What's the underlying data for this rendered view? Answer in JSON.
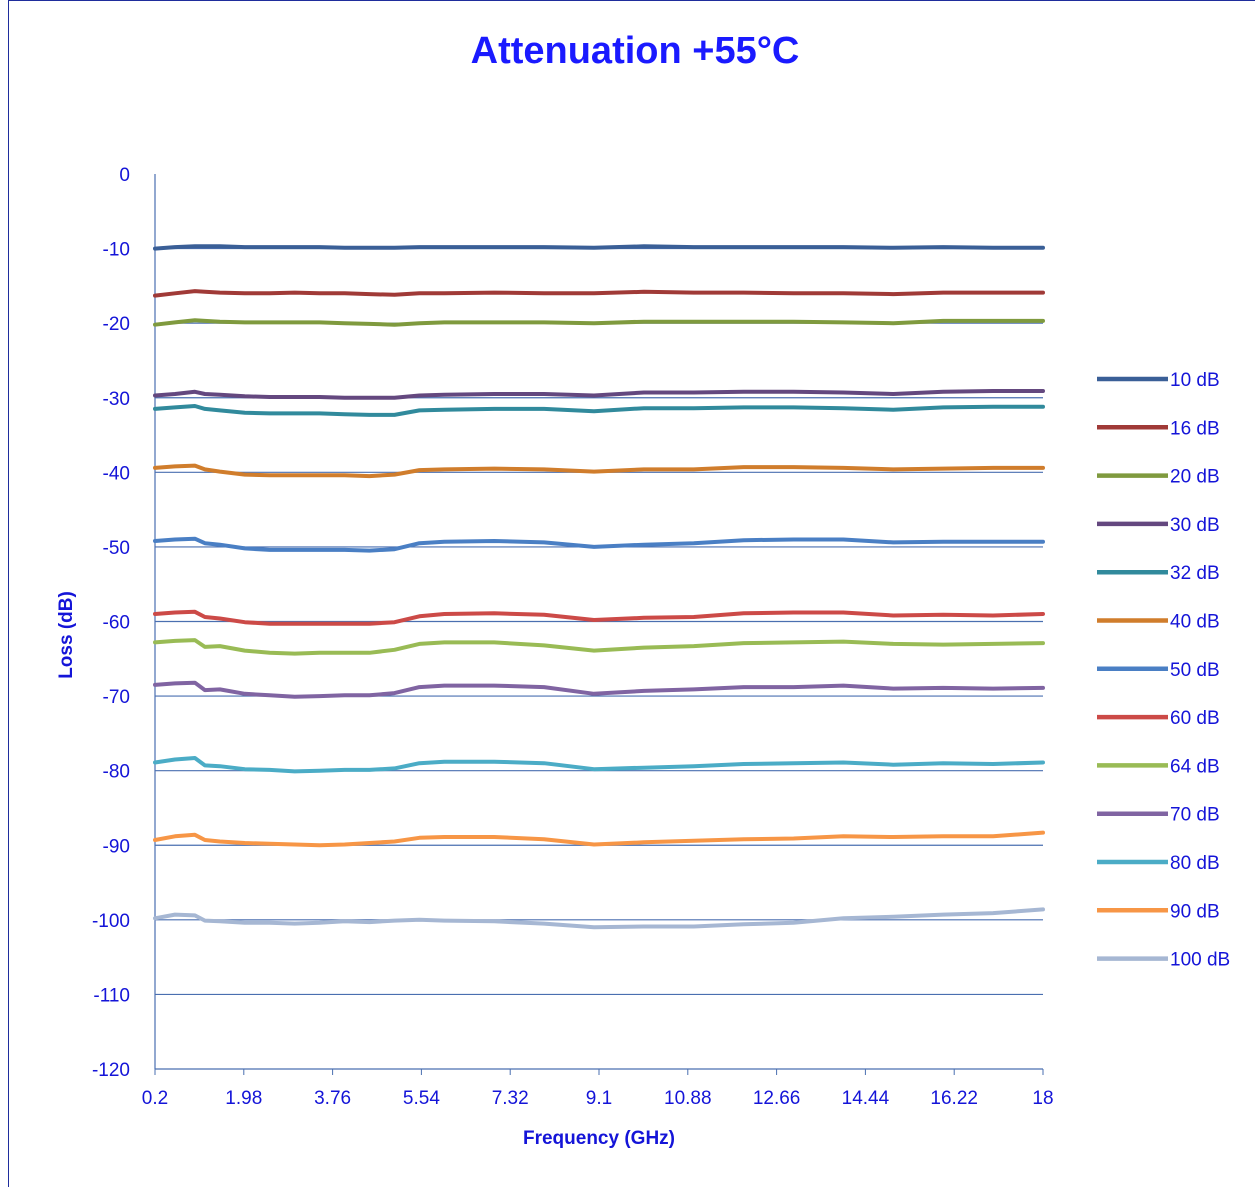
{
  "chart_data": {
    "type": "line",
    "title": "Attenuation +55°C",
    "xlabel": "Frequency (GHz)",
    "ylabel": "Loss (dB)",
    "xlim": [
      0.2,
      18
    ],
    "ylim": [
      -120,
      0
    ],
    "x_ticks": [
      "0.2",
      "1.98",
      "3.76",
      "5.54",
      "7.32",
      "9.1",
      "10.88",
      "12.66",
      "14.44",
      "16.22",
      "18"
    ],
    "y_ticks": [
      "0",
      "-10",
      "-20",
      "-30",
      "-40",
      "-50",
      "-60",
      "-70",
      "-80",
      "-90",
      "-100",
      "-110",
      "-120"
    ],
    "grid": "horizontal",
    "legend_position": "right",
    "x": [
      0.2,
      0.6,
      1.0,
      1.2,
      1.5,
      2.0,
      2.5,
      3.0,
      3.5,
      4.0,
      4.5,
      5.0,
      5.5,
      6.0,
      7.0,
      8.0,
      9.0,
      10.0,
      11.0,
      12.0,
      13.0,
      14.0,
      15.0,
      16.0,
      17.0,
      18.0
    ],
    "series": [
      {
        "name": "10 dB",
        "color": "#3a5f97",
        "values": [
          -10.0,
          -9.8,
          -9.7,
          -9.7,
          -9.7,
          -9.8,
          -9.8,
          -9.8,
          -9.8,
          -9.9,
          -9.9,
          -9.9,
          -9.8,
          -9.8,
          -9.8,
          -9.8,
          -9.9,
          -9.7,
          -9.8,
          -9.8,
          -9.8,
          -9.8,
          -9.9,
          -9.8,
          -9.9,
          -9.9
        ]
      },
      {
        "name": "16 dB",
        "color": "#a03a37",
        "values": [
          -16.3,
          -16.0,
          -15.7,
          -15.8,
          -15.9,
          -16.0,
          -16.0,
          -15.9,
          -16.0,
          -16.0,
          -16.1,
          -16.2,
          -16.0,
          -16.0,
          -15.9,
          -16.0,
          -16.0,
          -15.8,
          -15.9,
          -15.9,
          -16.0,
          -16.0,
          -16.1,
          -15.9,
          -15.9,
          -15.9
        ]
      },
      {
        "name": "20 dB",
        "color": "#7f9a3e",
        "values": [
          -20.2,
          -19.9,
          -19.6,
          -19.7,
          -19.8,
          -19.9,
          -19.9,
          -19.9,
          -19.9,
          -20.0,
          -20.1,
          -20.2,
          -20.0,
          -19.9,
          -19.9,
          -19.9,
          -20.0,
          -19.8,
          -19.8,
          -19.8,
          -19.8,
          -19.9,
          -20.0,
          -19.7,
          -19.7,
          -19.7
        ]
      },
      {
        "name": "30 dB",
        "color": "#64487f",
        "values": [
          -29.7,
          -29.5,
          -29.2,
          -29.5,
          -29.6,
          -29.8,
          -29.9,
          -29.9,
          -29.9,
          -30.0,
          -30.0,
          -30.0,
          -29.7,
          -29.6,
          -29.5,
          -29.5,
          -29.7,
          -29.3,
          -29.3,
          -29.2,
          -29.2,
          -29.3,
          -29.5,
          -29.2,
          -29.1,
          -29.1
        ]
      },
      {
        "name": "32 dB",
        "color": "#318a9c",
        "values": [
          -31.5,
          -31.3,
          -31.1,
          -31.5,
          -31.7,
          -32.0,
          -32.1,
          -32.1,
          -32.1,
          -32.2,
          -32.3,
          -32.3,
          -31.7,
          -31.6,
          -31.5,
          -31.5,
          -31.8,
          -31.4,
          -31.4,
          -31.3,
          -31.3,
          -31.4,
          -31.6,
          -31.3,
          -31.2,
          -31.2
        ]
      },
      {
        "name": "40 dB",
        "color": "#d07d2c",
        "values": [
          -39.4,
          -39.2,
          -39.1,
          -39.6,
          -39.9,
          -40.3,
          -40.4,
          -40.4,
          -40.4,
          -40.4,
          -40.5,
          -40.3,
          -39.7,
          -39.6,
          -39.5,
          -39.6,
          -39.9,
          -39.6,
          -39.6,
          -39.3,
          -39.3,
          -39.4,
          -39.6,
          -39.5,
          -39.4,
          -39.4
        ]
      },
      {
        "name": "50 dB",
        "color": "#4a7fc4",
        "values": [
          -49.2,
          -49.0,
          -48.9,
          -49.5,
          -49.7,
          -50.2,
          -50.4,
          -50.4,
          -50.4,
          -50.4,
          -50.5,
          -50.3,
          -49.5,
          -49.3,
          -49.2,
          -49.4,
          -50.0,
          -49.7,
          -49.5,
          -49.1,
          -49.0,
          -49.0,
          -49.4,
          -49.3,
          -49.3,
          -49.3
        ]
      },
      {
        "name": "60 dB",
        "color": "#cc4a47",
        "values": [
          -59.0,
          -58.8,
          -58.7,
          -59.4,
          -59.6,
          -60.1,
          -60.3,
          -60.3,
          -60.3,
          -60.3,
          -60.3,
          -60.1,
          -59.3,
          -59.0,
          -58.9,
          -59.1,
          -59.8,
          -59.5,
          -59.4,
          -58.9,
          -58.8,
          -58.8,
          -59.2,
          -59.1,
          -59.2,
          -59.0
        ]
      },
      {
        "name": "64 dB",
        "color": "#99bb55",
        "values": [
          -62.8,
          -62.6,
          -62.5,
          -63.4,
          -63.3,
          -63.9,
          -64.2,
          -64.3,
          -64.2,
          -64.2,
          -64.2,
          -63.8,
          -63.0,
          -62.8,
          -62.8,
          -63.2,
          -63.9,
          -63.5,
          -63.3,
          -62.9,
          -62.8,
          -62.7,
          -63.0,
          -63.1,
          -63.0,
          -62.9
        ]
      },
      {
        "name": "70 dB",
        "color": "#8064a2",
        "values": [
          -68.5,
          -68.3,
          -68.2,
          -69.2,
          -69.1,
          -69.7,
          -69.9,
          -70.1,
          -70.0,
          -69.9,
          -69.9,
          -69.6,
          -68.8,
          -68.6,
          -68.6,
          -68.8,
          -69.7,
          -69.3,
          -69.1,
          -68.8,
          -68.8,
          -68.6,
          -69.0,
          -68.9,
          -69.0,
          -68.9
        ]
      },
      {
        "name": "80 dB",
        "color": "#4bacc6",
        "values": [
          -78.9,
          -78.5,
          -78.3,
          -79.3,
          -79.4,
          -79.8,
          -79.9,
          -80.1,
          -80.0,
          -79.9,
          -79.9,
          -79.7,
          -79.0,
          -78.8,
          -78.8,
          -79.0,
          -79.8,
          -79.6,
          -79.4,
          -79.1,
          -79.0,
          -78.9,
          -79.2,
          -79.0,
          -79.1,
          -78.9
        ]
      },
      {
        "name": "90 dB",
        "color": "#f79646",
        "values": [
          -89.3,
          -88.8,
          -88.6,
          -89.3,
          -89.5,
          -89.7,
          -89.8,
          -89.9,
          -90.0,
          -89.9,
          -89.7,
          -89.5,
          -89.0,
          -88.9,
          -88.9,
          -89.2,
          -89.9,
          -89.6,
          -89.4,
          -89.2,
          -89.1,
          -88.8,
          -88.9,
          -88.8,
          -88.8,
          -88.3
        ]
      },
      {
        "name": "100 dB",
        "color": "#a6b7d3",
        "values": [
          -99.8,
          -99.3,
          -99.4,
          -100.1,
          -100.2,
          -100.4,
          -100.4,
          -100.5,
          -100.4,
          -100.2,
          -100.3,
          -100.1,
          -100.0,
          -100.1,
          -100.2,
          -100.5,
          -101.0,
          -100.9,
          -100.9,
          -100.6,
          -100.4,
          -99.8,
          -99.6,
          -99.3,
          -99.1,
          -98.6
        ]
      }
    ]
  }
}
